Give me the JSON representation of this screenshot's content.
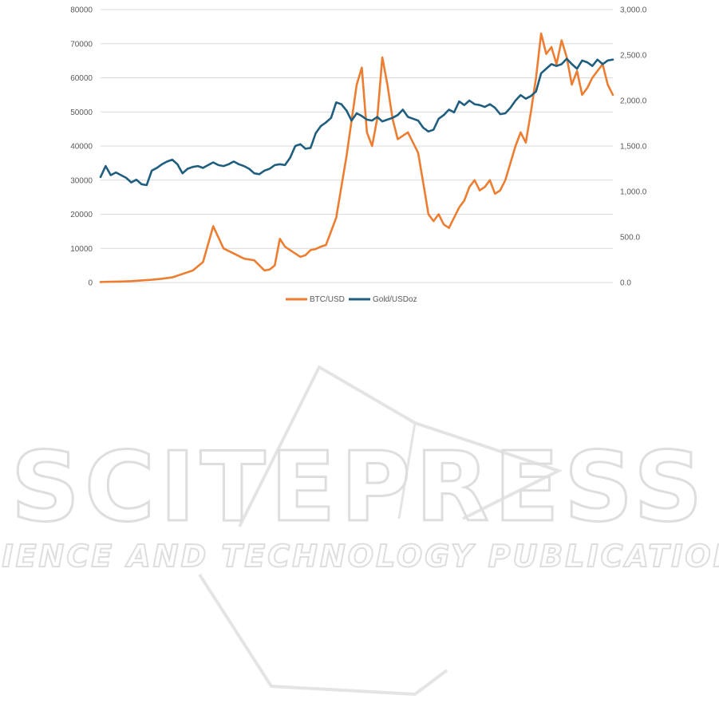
{
  "chart_data": {
    "type": "line",
    "title": "",
    "xlabel": "",
    "ylabel": "",
    "y_left": {
      "lim": [
        0,
        80000
      ],
      "ticks": [
        "0",
        "10000",
        "20000",
        "30000",
        "40000",
        "50000",
        "60000",
        "70000",
        "80000"
      ]
    },
    "y_right": {
      "lim": [
        0,
        3000
      ],
      "ticks": [
        "0.0",
        "500.0",
        "1,000.0",
        "1,500.0",
        "2,000.0",
        "2,500.0",
        "3,000.0"
      ]
    },
    "x_axis_labels": "none",
    "grid": "horizontal",
    "legend_position": "bottom",
    "series": [
      {
        "name": "BTC/USD",
        "axis": "left",
        "color": "#ED7D31",
        "x": [
          0,
          2,
          4,
          6,
          8,
          10,
          12,
          14,
          16,
          18,
          20,
          22,
          24,
          26,
          28,
          30,
          32,
          33,
          34,
          35,
          36,
          37,
          38,
          39,
          40,
          41,
          42,
          43,
          44,
          46,
          48,
          50,
          51,
          52,
          53,
          54,
          55,
          56,
          57,
          58,
          60,
          62,
          63,
          64,
          65,
          66,
          67,
          68,
          69,
          70,
          71,
          72,
          73,
          74,
          75,
          76,
          77,
          78,
          79,
          80,
          81,
          82,
          83,
          84,
          85,
          86,
          87,
          88,
          89,
          90,
          91,
          92,
          93,
          94,
          95,
          96,
          97,
          98,
          99,
          100
        ],
        "values": [
          150,
          200,
          280,
          400,
          600,
          800,
          1100,
          1500,
          2500,
          3500,
          6000,
          16500,
          10000,
          8500,
          7000,
          6500,
          3500,
          3800,
          5000,
          12800,
          10500,
          9500,
          8500,
          7500,
          8000,
          9500,
          9800,
          10500,
          11000,
          19000,
          37000,
          58000,
          63000,
          44000,
          40000,
          48000,
          66000,
          58000,
          48000,
          42000,
          44000,
          38000,
          29000,
          20000,
          18000,
          20000,
          17000,
          16000,
          19000,
          22000,
          24000,
          28000,
          30000,
          27000,
          28000,
          30000,
          26000,
          27000,
          30000,
          35000,
          40000,
          44000,
          41000,
          50000,
          60000,
          73000,
          67000,
          69000,
          64000,
          71000,
          66000,
          58000,
          62000,
          55000,
          57000,
          60000,
          62000,
          64000,
          58000,
          55000
        ]
      },
      {
        "name": "Gold/USDoz",
        "axis": "right",
        "color": "#1F5E7E",
        "x": [
          0,
          1,
          2,
          3,
          4,
          5,
          6,
          7,
          8,
          9,
          10,
          11,
          12,
          13,
          14,
          15,
          16,
          17,
          18,
          19,
          20,
          21,
          22,
          23,
          24,
          25,
          26,
          27,
          28,
          29,
          30,
          31,
          32,
          33,
          34,
          35,
          36,
          37,
          38,
          39,
          40,
          41,
          42,
          43,
          44,
          45,
          46,
          47,
          48,
          49,
          50,
          51,
          52,
          53,
          54,
          55,
          56,
          57,
          58,
          59,
          60,
          61,
          62,
          63,
          64,
          65,
          66,
          67,
          68,
          69,
          70,
          71,
          72,
          73,
          74,
          75,
          76,
          77,
          78,
          79,
          80,
          81,
          82,
          83,
          84,
          85,
          86,
          87,
          88,
          89,
          90,
          91,
          92,
          93,
          94,
          95,
          96,
          97,
          98,
          99,
          100
        ],
        "values": [
          1160,
          1280,
          1180,
          1210,
          1180,
          1150,
          1100,
          1130,
          1080,
          1070,
          1230,
          1260,
          1300,
          1330,
          1350,
          1300,
          1200,
          1250,
          1270,
          1280,
          1260,
          1290,
          1320,
          1290,
          1280,
          1300,
          1330,
          1300,
          1280,
          1250,
          1200,
          1190,
          1230,
          1250,
          1290,
          1300,
          1290,
          1370,
          1500,
          1520,
          1470,
          1480,
          1640,
          1720,
          1760,
          1810,
          1980,
          1960,
          1890,
          1780,
          1860,
          1830,
          1790,
          1780,
          1820,
          1770,
          1790,
          1810,
          1840,
          1900,
          1820,
          1800,
          1780,
          1700,
          1660,
          1680,
          1800,
          1840,
          1900,
          1870,
          1990,
          1950,
          2000,
          1960,
          1950,
          1930,
          1960,
          1920,
          1850,
          1860,
          1920,
          2000,
          2060,
          2020,
          2050,
          2100,
          2300,
          2350,
          2400,
          2380,
          2400,
          2460,
          2400,
          2350,
          2440,
          2420,
          2380,
          2450,
          2400,
          2440,
          2450
        ]
      }
    ]
  }
}
